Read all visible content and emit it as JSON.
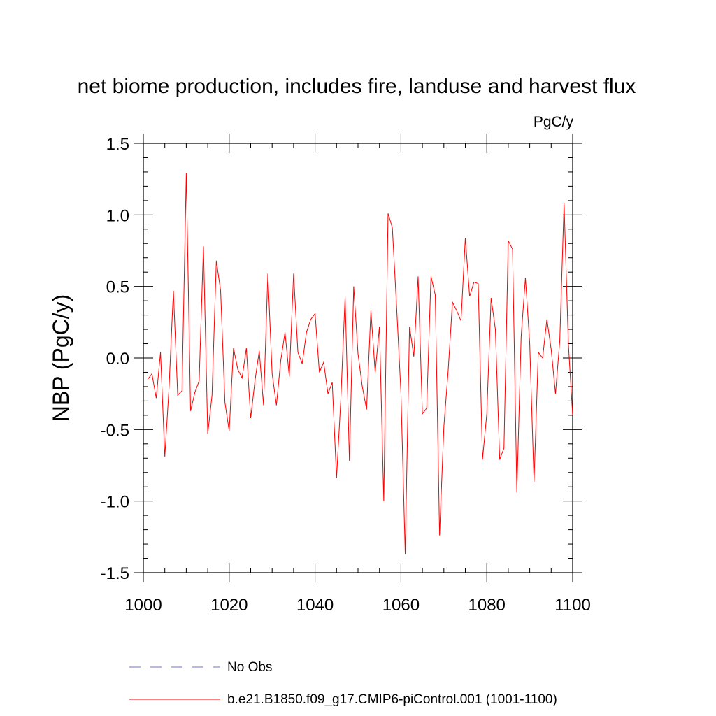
{
  "chart_data": {
    "type": "line",
    "title": "net biome production, includes fire, landuse and harvest flux",
    "units": "PgC/y",
    "xlabel": "",
    "ylabel": "NBP  (PgC/y)",
    "xlim": [
      1000,
      1100
    ],
    "ylim": [
      -1.5,
      1.5
    ],
    "x_ticks": [
      1000,
      1020,
      1040,
      1060,
      1080,
      1100
    ],
    "y_ticks": [
      -1.5,
      -1.0,
      -0.5,
      0.0,
      0.5,
      1.0,
      1.5
    ],
    "x_tick_labels": [
      "1000",
      "1020",
      "1040",
      "1060",
      "1080",
      "1100"
    ],
    "y_tick_labels": [
      "-1.5",
      "-1.0",
      "-0.5",
      "0.0",
      "0.5",
      "1.0",
      "1.5"
    ],
    "grid": false,
    "legend_position": "bottom",
    "series": [
      {
        "name": "b.e21.B1850.f09_g17.CMIP6-piControl.001 (1001-1100)",
        "color": "#ff0000",
        "style": "solid",
        "x_start": 1001,
        "x_step": 1,
        "values": [
          -0.15,
          -0.11,
          -0.28,
          0.04,
          -0.69,
          -0.2,
          0.47,
          -0.26,
          -0.23,
          1.29,
          -0.37,
          -0.24,
          -0.16,
          0.78,
          -0.53,
          -0.26,
          0.68,
          0.47,
          -0.31,
          -0.51,
          0.07,
          -0.08,
          -0.14,
          0.07,
          -0.42,
          -0.16,
          0.05,
          -0.33,
          0.59,
          -0.11,
          -0.33,
          -0.02,
          0.18,
          -0.13,
          0.59,
          0.04,
          -0.04,
          0.18,
          0.27,
          0.31,
          -0.1,
          -0.03,
          -0.25,
          -0.17,
          -0.84,
          -0.29,
          0.43,
          -0.72,
          0.5,
          0.03,
          -0.2,
          -0.36,
          0.33,
          -0.1,
          0.22,
          -1.0,
          1.01,
          0.91,
          0.35,
          -0.24,
          -1.37,
          0.22,
          0.01,
          0.57,
          -0.39,
          -0.35,
          0.57,
          0.44,
          -1.24,
          -0.48,
          -0.09,
          0.39,
          0.33,
          0.26,
          0.84,
          0.43,
          0.53,
          0.52,
          -0.71,
          -0.39,
          0.42,
          0.2,
          -0.71,
          -0.63,
          0.82,
          0.76,
          -0.94,
          0.15,
          0.56,
          0.1,
          -0.87,
          0.04,
          0.0,
          0.27,
          0.06,
          -0.25,
          0.12,
          1.08,
          0.1,
          -0.4
        ]
      },
      {
        "name": "No Obs",
        "color": "#7070c8",
        "style": "dashed",
        "values": []
      }
    ]
  }
}
